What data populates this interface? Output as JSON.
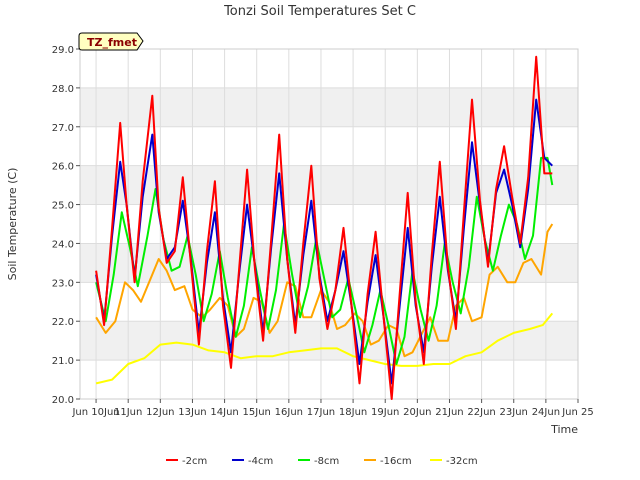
{
  "chart_data": {
    "type": "line",
    "title": "Tonzi Soil Temperatures Set C",
    "xlabel": "Time",
    "ylabel": "Soil Temperature (C)",
    "site_label": "TZ_fmet",
    "xlim": [
      9.5,
      25
    ],
    "ylim": [
      20,
      29
    ],
    "x_ticks": [
      10,
      11,
      12,
      13,
      14,
      15,
      16,
      17,
      18,
      19,
      20,
      21,
      22,
      23,
      24,
      25
    ],
    "x_tick_labels": [
      "Jun 10Jun",
      "11Jun",
      "12Jun",
      "13Jun",
      "14Jun",
      "15Jun",
      "16Jun",
      "17Jun",
      "18Jun",
      "19Jun",
      "20Jun",
      "21Jun",
      "22Jun",
      "23Jun",
      "24Jun",
      "Jun 25"
    ],
    "y_ticks": [
      20,
      21,
      22,
      23,
      24,
      25,
      26,
      27,
      28,
      29
    ],
    "y_tick_labels": [
      "20.0",
      "21.0",
      "22.0",
      "23.0",
      "24.0",
      "25.0",
      "26.0",
      "27.0",
      "28.0",
      "29.0"
    ],
    "grid": true,
    "banded_background": true,
    "legend_position": "bottom",
    "series": [
      {
        "name": "-2cm",
        "color": "#ff0000",
        "x": [
          10.0,
          10.25,
          10.5,
          10.75,
          10.95,
          11.2,
          11.45,
          11.75,
          11.95,
          12.2,
          12.45,
          12.7,
          12.95,
          13.2,
          13.45,
          13.7,
          13.95,
          14.2,
          14.45,
          14.7,
          14.95,
          15.2,
          15.45,
          15.7,
          15.95,
          16.2,
          16.45,
          16.7,
          16.95,
          17.2,
          17.45,
          17.7,
          17.95,
          18.2,
          18.45,
          18.7,
          18.95,
          19.2,
          19.45,
          19.7,
          19.95,
          20.2,
          20.45,
          20.7,
          20.95,
          21.2,
          21.45,
          21.7,
          21.95,
          22.2,
          22.45,
          22.7,
          22.95,
          23.2,
          23.45,
          23.7,
          23.95,
          24.2
        ],
        "y": [
          23.3,
          21.9,
          24.4,
          27.1,
          25.0,
          23.0,
          25.6,
          27.8,
          24.9,
          23.5,
          23.8,
          25.7,
          23.5,
          21.4,
          23.8,
          25.6,
          22.4,
          20.8,
          23.3,
          25.9,
          23.3,
          21.5,
          24.1,
          26.8,
          23.6,
          21.7,
          24.0,
          26.0,
          23.1,
          21.8,
          22.8,
          24.4,
          22.4,
          20.4,
          22.7,
          24.3,
          22.1,
          20.0,
          22.7,
          25.3,
          22.5,
          20.9,
          23.7,
          26.1,
          23.4,
          21.8,
          24.8,
          27.7,
          25.1,
          23.4,
          25.4,
          26.5,
          25.2,
          24.0,
          25.7,
          28.8,
          25.8,
          25.8
        ]
      },
      {
        "name": "-4cm",
        "color": "#0000cc",
        "x": [
          10.0,
          10.25,
          10.5,
          10.75,
          10.95,
          11.2,
          11.45,
          11.75,
          11.95,
          12.2,
          12.45,
          12.7,
          12.95,
          13.2,
          13.45,
          13.7,
          13.95,
          14.2,
          14.45,
          14.7,
          14.95,
          15.2,
          15.45,
          15.7,
          15.95,
          16.2,
          16.45,
          16.7,
          16.95,
          17.2,
          17.45,
          17.7,
          17.95,
          18.2,
          18.45,
          18.7,
          18.95,
          19.2,
          19.45,
          19.7,
          19.95,
          20.2,
          20.45,
          20.7,
          20.95,
          21.2,
          21.45,
          21.7,
          21.95,
          22.2,
          22.45,
          22.7,
          22.95,
          23.2,
          23.45,
          23.7,
          23.95,
          24.2
        ],
        "y": [
          23.2,
          22.0,
          24.2,
          26.1,
          25.0,
          23.1,
          25.2,
          26.8,
          24.8,
          23.6,
          23.9,
          25.1,
          23.6,
          21.7,
          23.5,
          24.8,
          22.6,
          21.2,
          23.2,
          25.0,
          23.4,
          21.7,
          23.9,
          25.8,
          23.6,
          21.9,
          23.7,
          25.1,
          23.2,
          22.0,
          22.8,
          23.8,
          22.4,
          20.9,
          22.5,
          23.7,
          22.1,
          20.4,
          22.4,
          24.4,
          22.4,
          21.2,
          23.4,
          25.2,
          23.3,
          22.0,
          24.4,
          26.6,
          25.0,
          23.5,
          25.3,
          25.9,
          25.0,
          23.9,
          25.4,
          27.7,
          26.2,
          26.0
        ]
      },
      {
        "name": "-8cm",
        "color": "#00ee00",
        "x": [
          10.0,
          10.3,
          10.55,
          10.8,
          11.05,
          11.3,
          11.6,
          11.85,
          12.1,
          12.35,
          12.6,
          12.85,
          13.1,
          13.35,
          13.6,
          13.85,
          14.1,
          14.35,
          14.6,
          14.85,
          15.1,
          15.35,
          15.6,
          15.85,
          16.1,
          16.35,
          16.6,
          16.85,
          17.1,
          17.35,
          17.6,
          17.85,
          18.1,
          18.35,
          18.6,
          18.85,
          19.1,
          19.35,
          19.6,
          19.85,
          20.1,
          20.35,
          20.6,
          20.85,
          21.1,
          21.35,
          21.6,
          21.85,
          22.1,
          22.35,
          22.6,
          22.85,
          23.1,
          23.35,
          23.6,
          23.85,
          24.05,
          24.2
        ],
        "y": [
          23.0,
          22.0,
          23.2,
          24.8,
          23.9,
          22.9,
          24.2,
          25.4,
          24.1,
          23.3,
          23.4,
          24.2,
          23.2,
          22.0,
          22.7,
          23.8,
          22.6,
          21.6,
          22.4,
          23.9,
          22.8,
          21.8,
          22.8,
          24.5,
          23.2,
          22.1,
          22.9,
          24.1,
          23.1,
          22.1,
          22.3,
          23.1,
          22.2,
          21.2,
          21.9,
          22.8,
          21.9,
          20.9,
          21.6,
          23.3,
          22.3,
          21.5,
          22.4,
          24.0,
          23.0,
          22.2,
          23.4,
          25.2,
          24.1,
          23.3,
          24.2,
          25.0,
          24.5,
          23.6,
          24.2,
          26.2,
          26.2,
          25.5
        ]
      },
      {
        "name": "-16cm",
        "color": "#ffa500",
        "x": [
          10.0,
          10.3,
          10.6,
          10.9,
          11.15,
          11.4,
          11.7,
          11.95,
          12.2,
          12.45,
          12.75,
          13.0,
          13.3,
          13.55,
          13.85,
          14.1,
          14.35,
          14.6,
          14.9,
          15.15,
          15.4,
          15.65,
          15.95,
          16.2,
          16.45,
          16.7,
          17.0,
          17.25,
          17.5,
          17.75,
          18.05,
          18.3,
          18.55,
          18.8,
          19.1,
          19.35,
          19.6,
          19.85,
          20.15,
          20.4,
          20.65,
          20.95,
          21.2,
          21.45,
          21.7,
          22.0,
          22.25,
          22.5,
          22.8,
          23.05,
          23.3,
          23.55,
          23.85,
          24.05,
          24.2
        ],
        "y": [
          22.1,
          21.7,
          22.0,
          23.0,
          22.8,
          22.5,
          23.1,
          23.6,
          23.3,
          22.8,
          22.9,
          22.3,
          22.1,
          22.3,
          22.6,
          22.4,
          21.6,
          21.8,
          22.6,
          22.5,
          21.7,
          22.0,
          23.0,
          22.9,
          22.1,
          22.1,
          22.8,
          22.5,
          21.8,
          21.9,
          22.2,
          22.0,
          21.4,
          21.5,
          21.9,
          21.8,
          21.1,
          21.2,
          21.7,
          22.1,
          21.5,
          21.5,
          22.4,
          22.6,
          22.0,
          22.1,
          23.2,
          23.4,
          23.0,
          23.0,
          23.5,
          23.6,
          23.2,
          24.3,
          24.5
        ]
      },
      {
        "name": "-32cm",
        "color": "#ffff00",
        "x": [
          10.0,
          10.5,
          11.0,
          11.5,
          12.0,
          12.5,
          13.0,
          13.5,
          14.0,
          14.5,
          15.0,
          15.5,
          16.0,
          16.5,
          17.0,
          17.5,
          18.0,
          18.5,
          19.0,
          19.5,
          20.0,
          20.5,
          21.0,
          21.5,
          22.0,
          22.5,
          23.0,
          23.5,
          23.9,
          24.2
        ],
        "y": [
          20.4,
          20.5,
          20.9,
          21.05,
          21.4,
          21.45,
          21.4,
          21.25,
          21.2,
          21.05,
          21.1,
          21.1,
          21.2,
          21.25,
          21.3,
          21.3,
          21.1,
          21.0,
          20.9,
          20.85,
          20.85,
          20.9,
          20.9,
          21.1,
          21.2,
          21.5,
          21.7,
          21.8,
          21.9,
          22.2
        ]
      }
    ]
  }
}
